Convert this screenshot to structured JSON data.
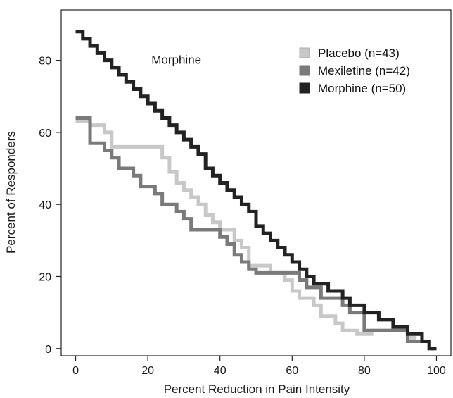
{
  "chart_data": {
    "type": "line",
    "step": true,
    "xlabel": "Percent Reduction in Pain Intensity",
    "ylabel": "Percent of Responders",
    "xlim": [
      -4,
      104
    ],
    "ylim": [
      -2,
      94
    ],
    "xticks": [
      0,
      20,
      40,
      60,
      80,
      100
    ],
    "yticks": [
      0,
      20,
      40,
      60,
      80
    ],
    "grid": false,
    "legend_position": "top-right",
    "annotation": {
      "text": "Morphine",
      "x": 21,
      "y": 79
    },
    "series": [
      {
        "name": "Placebo (n=43)",
        "color": "#c8c8c8",
        "points": [
          [
            0,
            63
          ],
          [
            4,
            63
          ],
          [
            4,
            62
          ],
          [
            8,
            62
          ],
          [
            8,
            60
          ],
          [
            10,
            60
          ],
          [
            10,
            56
          ],
          [
            24,
            56
          ],
          [
            24,
            53
          ],
          [
            26,
            53
          ],
          [
            26,
            49
          ],
          [
            28,
            49
          ],
          [
            28,
            46
          ],
          [
            30,
            46
          ],
          [
            30,
            44
          ],
          [
            32,
            44
          ],
          [
            32,
            42
          ],
          [
            34,
            42
          ],
          [
            34,
            40
          ],
          [
            36,
            40
          ],
          [
            36,
            37
          ],
          [
            38,
            37
          ],
          [
            38,
            35
          ],
          [
            40,
            35
          ],
          [
            40,
            33
          ],
          [
            44,
            33
          ],
          [
            44,
            30
          ],
          [
            46,
            30
          ],
          [
            46,
            28
          ],
          [
            48,
            28
          ],
          [
            48,
            23
          ],
          [
            54,
            23
          ],
          [
            54,
            21
          ],
          [
            58,
            21
          ],
          [
            58,
            19
          ],
          [
            60,
            19
          ],
          [
            60,
            16
          ],
          [
            62,
            16
          ],
          [
            62,
            14
          ],
          [
            66,
            14
          ],
          [
            66,
            12
          ],
          [
            68,
            12
          ],
          [
            68,
            9
          ],
          [
            72,
            9
          ],
          [
            72,
            7
          ],
          [
            74,
            7
          ],
          [
            74,
            5
          ],
          [
            78,
            5
          ],
          [
            78,
            4
          ],
          [
            82,
            4
          ],
          [
            82,
            5
          ],
          [
            92,
            5
          ],
          [
            92,
            3
          ],
          [
            94,
            3
          ],
          [
            94,
            2
          ],
          [
            98,
            2
          ],
          [
            98,
            0
          ],
          [
            100,
            0
          ]
        ]
      },
      {
        "name": "Mexiletine (n=42)",
        "color": "#7a7a7a",
        "points": [
          [
            0,
            64
          ],
          [
            4,
            64
          ],
          [
            4,
            57
          ],
          [
            8,
            57
          ],
          [
            8,
            55
          ],
          [
            10,
            55
          ],
          [
            10,
            53
          ],
          [
            12,
            53
          ],
          [
            12,
            50
          ],
          [
            16,
            50
          ],
          [
            16,
            48
          ],
          [
            18,
            48
          ],
          [
            18,
            45
          ],
          [
            22,
            45
          ],
          [
            22,
            43
          ],
          [
            24,
            43
          ],
          [
            24,
            40
          ],
          [
            28,
            40
          ],
          [
            28,
            38
          ],
          [
            30,
            38
          ],
          [
            30,
            36
          ],
          [
            32,
            36
          ],
          [
            32,
            33
          ],
          [
            40,
            33
          ],
          [
            40,
            31
          ],
          [
            42,
            31
          ],
          [
            42,
            29
          ],
          [
            44,
            29
          ],
          [
            44,
            26
          ],
          [
            46,
            26
          ],
          [
            46,
            24
          ],
          [
            48,
            24
          ],
          [
            48,
            22
          ],
          [
            50,
            22
          ],
          [
            50,
            21
          ],
          [
            62,
            21
          ],
          [
            62,
            19
          ],
          [
            64,
            19
          ],
          [
            64,
            17
          ],
          [
            68,
            17
          ],
          [
            68,
            14
          ],
          [
            74,
            14
          ],
          [
            74,
            12
          ],
          [
            76,
            12
          ],
          [
            76,
            10
          ],
          [
            80,
            10
          ],
          [
            80,
            5
          ],
          [
            92,
            5
          ],
          [
            92,
            2
          ],
          [
            98,
            2
          ],
          [
            98,
            0
          ],
          [
            100,
            0
          ]
        ]
      },
      {
        "name": "Morphine (n=50)",
        "color": "#222222",
        "points": [
          [
            0,
            88
          ],
          [
            2,
            88
          ],
          [
            2,
            86
          ],
          [
            4,
            86
          ],
          [
            4,
            84
          ],
          [
            6,
            84
          ],
          [
            6,
            82
          ],
          [
            8,
            82
          ],
          [
            8,
            80
          ],
          [
            10,
            80
          ],
          [
            10,
            78
          ],
          [
            12,
            78
          ],
          [
            12,
            76
          ],
          [
            14,
            76
          ],
          [
            14,
            74
          ],
          [
            16,
            74
          ],
          [
            16,
            72
          ],
          [
            18,
            72
          ],
          [
            18,
            70
          ],
          [
            20,
            70
          ],
          [
            20,
            68
          ],
          [
            22,
            68
          ],
          [
            22,
            66
          ],
          [
            24,
            66
          ],
          [
            24,
            64
          ],
          [
            26,
            64
          ],
          [
            26,
            62
          ],
          [
            28,
            62
          ],
          [
            28,
            60
          ],
          [
            30,
            60
          ],
          [
            30,
            58
          ],
          [
            32,
            58
          ],
          [
            32,
            56
          ],
          [
            34,
            56
          ],
          [
            34,
            54
          ],
          [
            36,
            54
          ],
          [
            36,
            50
          ],
          [
            38,
            50
          ],
          [
            38,
            48
          ],
          [
            40,
            48
          ],
          [
            40,
            46
          ],
          [
            42,
            46
          ],
          [
            42,
            44
          ],
          [
            44,
            44
          ],
          [
            44,
            42
          ],
          [
            46,
            42
          ],
          [
            46,
            40
          ],
          [
            48,
            40
          ],
          [
            48,
            38
          ],
          [
            50,
            38
          ],
          [
            50,
            34
          ],
          [
            52,
            34
          ],
          [
            52,
            32
          ],
          [
            54,
            32
          ],
          [
            54,
            30
          ],
          [
            56,
            30
          ],
          [
            56,
            28
          ],
          [
            58,
            28
          ],
          [
            58,
            26
          ],
          [
            60,
            26
          ],
          [
            60,
            24
          ],
          [
            62,
            24
          ],
          [
            62,
            22
          ],
          [
            64,
            22
          ],
          [
            64,
            20
          ],
          [
            66,
            20
          ],
          [
            66,
            18
          ],
          [
            70,
            18
          ],
          [
            70,
            16
          ],
          [
            74,
            16
          ],
          [
            74,
            14
          ],
          [
            76,
            14
          ],
          [
            76,
            12
          ],
          [
            80,
            12
          ],
          [
            80,
            10
          ],
          [
            84,
            10
          ],
          [
            84,
            8
          ],
          [
            88,
            8
          ],
          [
            88,
            6
          ],
          [
            92,
            6
          ],
          [
            92,
            4
          ],
          [
            96,
            4
          ],
          [
            96,
            2
          ],
          [
            98,
            2
          ],
          [
            98,
            0
          ],
          [
            100,
            0
          ]
        ]
      }
    ]
  }
}
